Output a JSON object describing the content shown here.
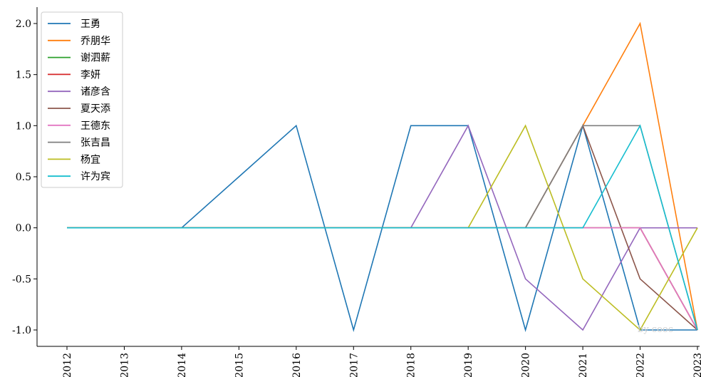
{
  "chart_data": {
    "type": "line",
    "x": [
      "2012",
      "2013",
      "2014",
      "2015",
      "2016",
      "2017",
      "2018",
      "2019",
      "2020",
      "2021",
      "2022",
      "2023"
    ],
    "ylim": [
      -1.0,
      2.0
    ],
    "yticks": [
      "2.0",
      "1.5",
      "1.0",
      "0.5",
      "0.0",
      "-0.5",
      "-1.0"
    ],
    "grid": false,
    "legend_position": "top-left",
    "watermark": "by cooc",
    "series": [
      {
        "name": "王勇",
        "color": "#1f77b4",
        "values": [
          0,
          0,
          0,
          0.5,
          1,
          -1,
          1,
          1,
          -1,
          1,
          -1,
          -1
        ]
      },
      {
        "name": "乔朋华",
        "color": "#ff7f0e",
        "values": [
          0,
          0,
          0,
          0,
          0,
          0,
          0,
          0,
          0,
          1,
          2,
          -1
        ]
      },
      {
        "name": "谢泗薪",
        "color": "#2ca02c",
        "values": [
          0,
          0,
          0,
          0,
          0,
          0,
          0,
          0,
          0,
          0,
          0,
          -1
        ]
      },
      {
        "name": "李妍",
        "color": "#d62728",
        "values": [
          0,
          0,
          0,
          0,
          0,
          0,
          0,
          0,
          0,
          0,
          0,
          -1
        ]
      },
      {
        "name": "诸彦含",
        "color": "#9467bd",
        "values": [
          0,
          0,
          0,
          0,
          0,
          0,
          0,
          1,
          -0.5,
          -1,
          0,
          0
        ]
      },
      {
        "name": "夏天添",
        "color": "#8c564b",
        "values": [
          0,
          0,
          0,
          0,
          0,
          0,
          0,
          0,
          0,
          1,
          -0.5,
          -1
        ]
      },
      {
        "name": "王德东",
        "color": "#e377c2",
        "values": [
          0,
          0,
          0,
          0,
          0,
          0,
          0,
          0,
          0,
          0,
          0,
          -1
        ]
      },
      {
        "name": "张吉昌",
        "color": "#7f7f7f",
        "values": [
          0,
          0,
          0,
          0,
          0,
          0,
          0,
          0,
          0,
          1,
          1,
          -1
        ]
      },
      {
        "name": "杨宜",
        "color": "#bcbd22",
        "values": [
          0,
          0,
          0,
          0,
          0,
          0,
          0,
          0,
          1,
          -0.5,
          -1,
          0
        ]
      },
      {
        "name": "许为宾",
        "color": "#17becf",
        "values": [
          0,
          0,
          0,
          0,
          0,
          0,
          0,
          0,
          0,
          0,
          1,
          -1
        ]
      }
    ]
  }
}
